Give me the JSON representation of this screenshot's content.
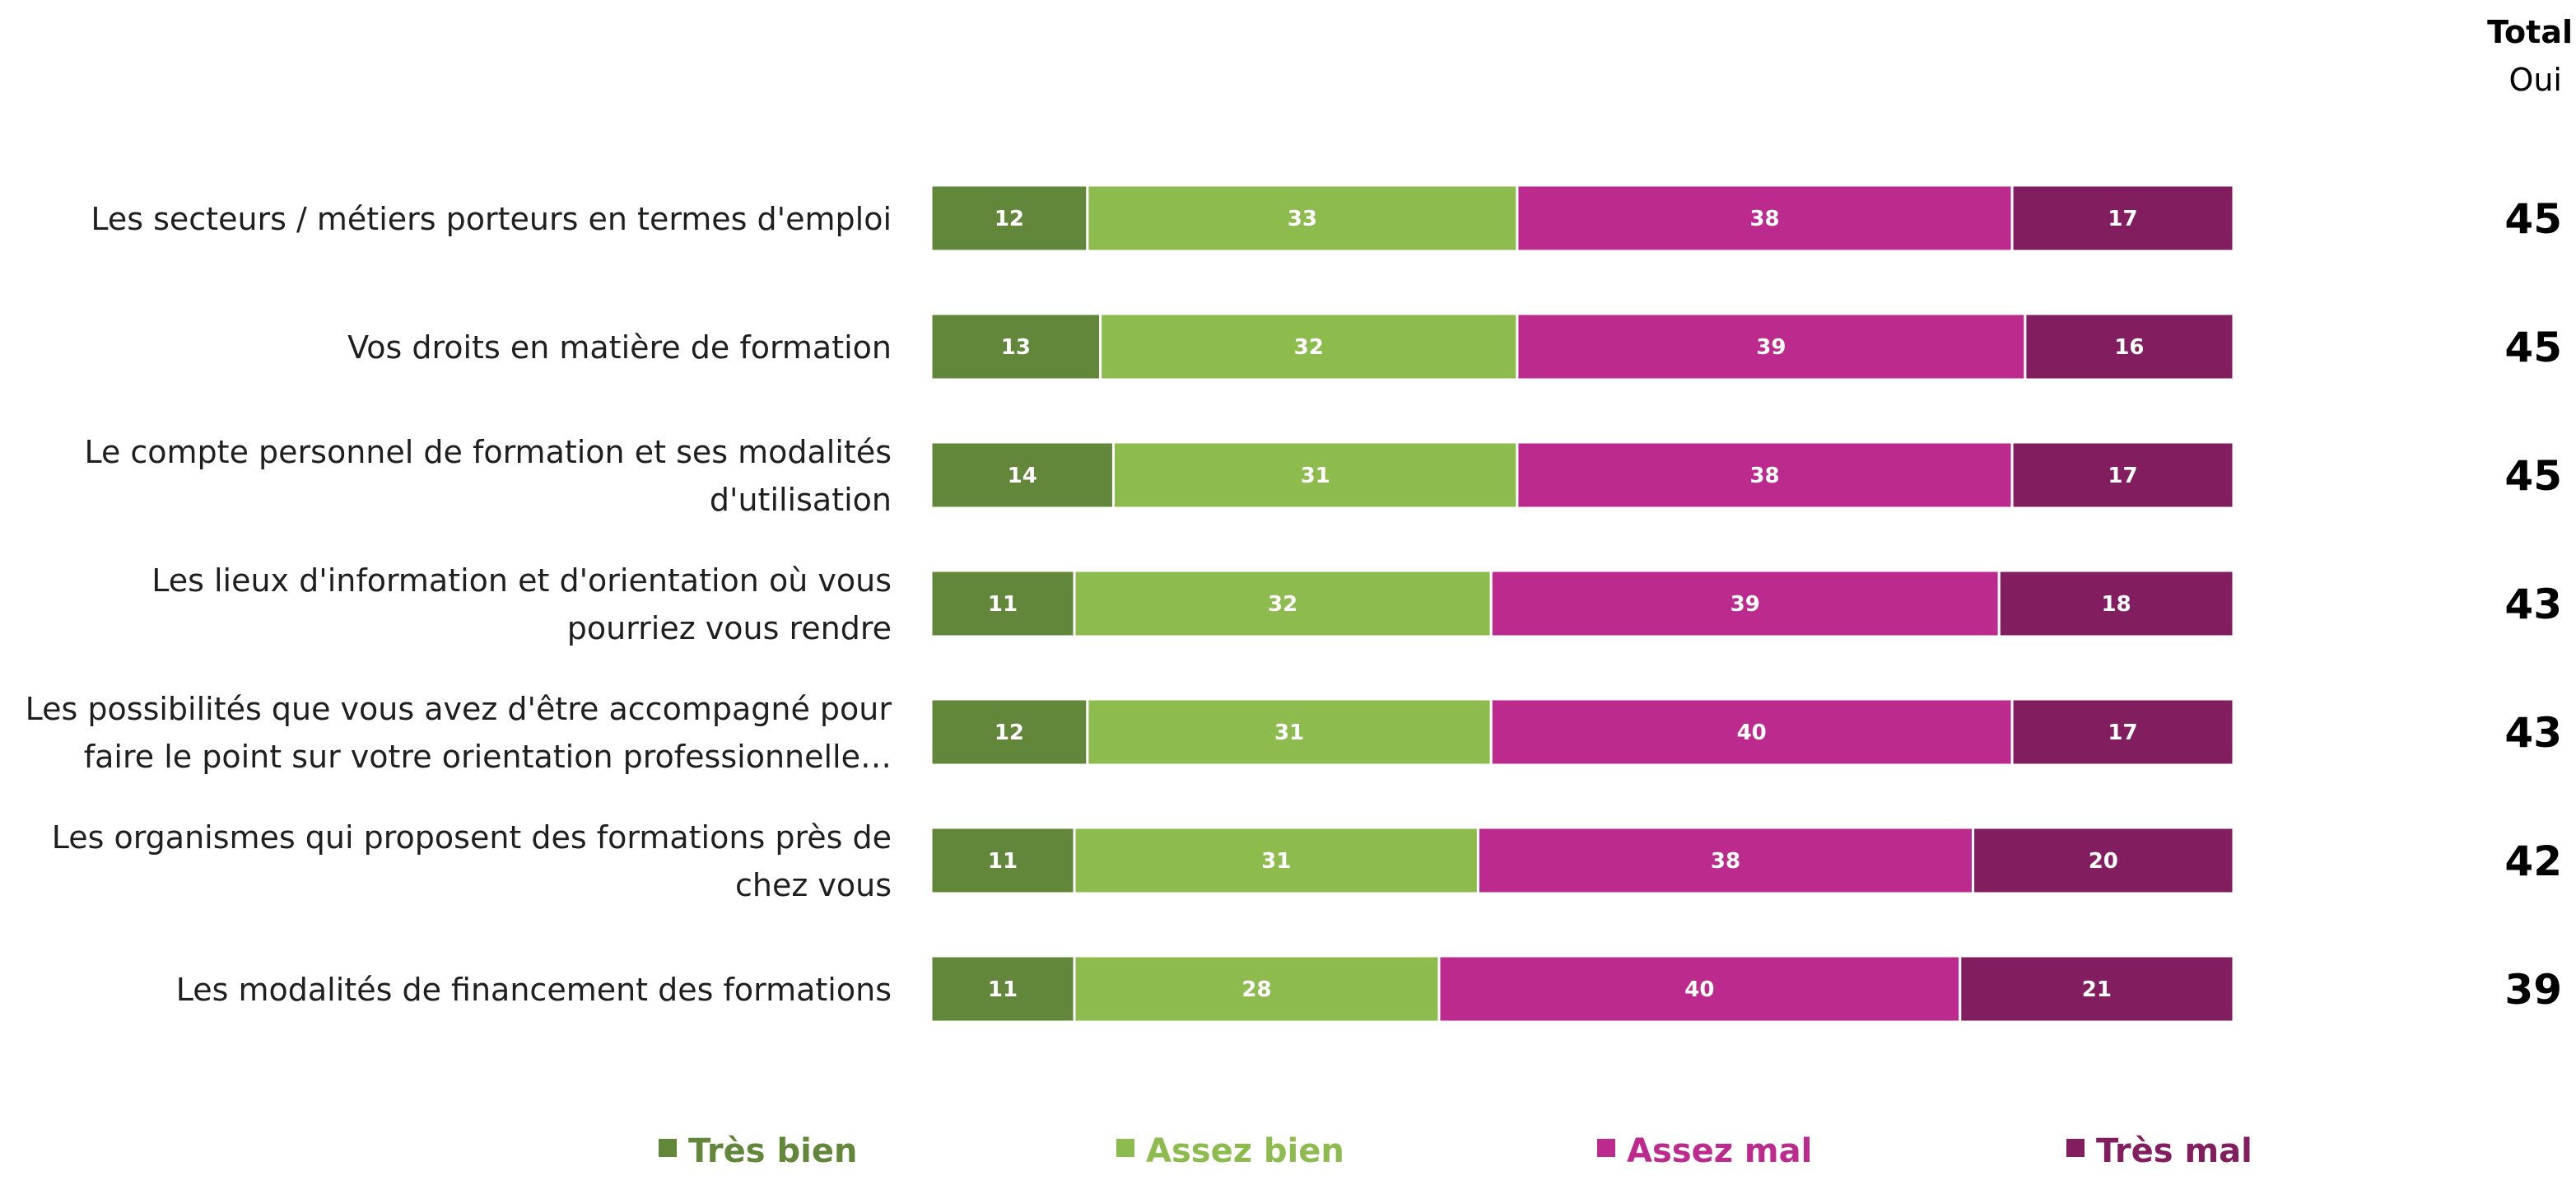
{
  "chart_data": {
    "type": "bar",
    "orientation": "horizontal",
    "stacked": true,
    "xlim": [
      0,
      100
    ],
    "grid": false,
    "legend_position": "bottom",
    "categories": [
      [
        "Les secteurs / métiers porteurs en termes d'emploi"
      ],
      [
        "Vos droits en matière de formation"
      ],
      [
        "Le compte personnel de formation et ses modalités",
        "d'utilisation"
      ],
      [
        "Les lieux d'information et d'orientation où vous",
        "pourriez vous rendre"
      ],
      [
        "Les possibilités que vous avez d'être accompagné pour",
        "faire le point sur votre orientation professionnelle…"
      ],
      [
        "Les organismes qui proposent des formations près de",
        "chez vous"
      ],
      [
        "Les modalités de financement des formations"
      ]
    ],
    "series": [
      {
        "name": "Très bien",
        "color": "#63873A",
        "values": [
          12,
          13,
          14,
          11,
          12,
          11,
          11
        ]
      },
      {
        "name": "Assez bien",
        "color": "#8DBB4E",
        "values": [
          33,
          32,
          31,
          32,
          31,
          31,
          28
        ]
      },
      {
        "name": "Assez mal",
        "color": "#BC2A8D",
        "values": [
          38,
          39,
          38,
          39,
          40,
          38,
          40
        ]
      },
      {
        "name": "Très mal",
        "color": "#821D5F",
        "values": [
          17,
          16,
          17,
          18,
          17,
          20,
          21
        ]
      }
    ],
    "total_column": {
      "header": "Total",
      "subheader": "Oui",
      "values": [
        45,
        45,
        45,
        43,
        43,
        42,
        39
      ]
    }
  }
}
